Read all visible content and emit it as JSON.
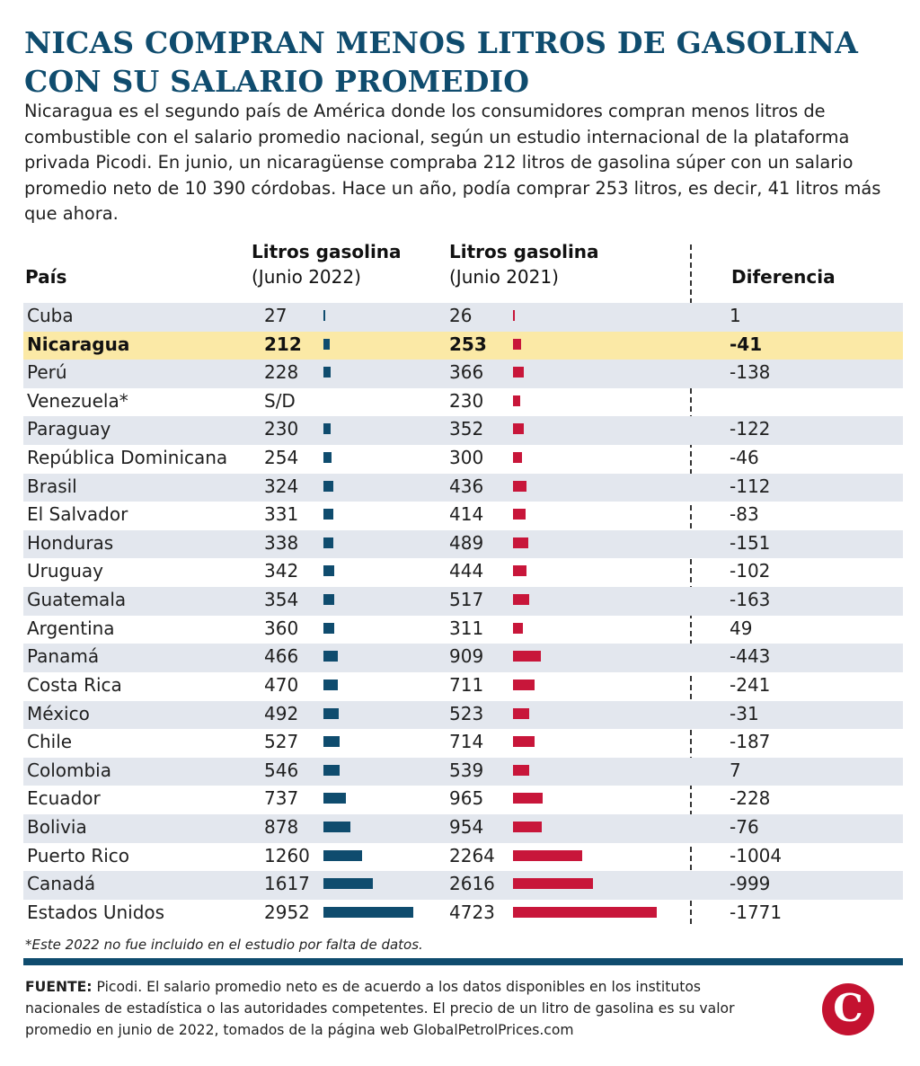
{
  "title": "NICAS COMPRAN MENOS LITROS DE GASOLINA CON SU SALARIO PROMEDIO",
  "intro": "Nicaragua es el segundo país de América donde los consumidores compran menos litros de combustible con el salario promedio nacional, según un estudio internacional de la plataforma privada Picodi. En junio, un nicaragüense compraba 212 litros de gasolina súper con un salario promedio neto de 10 390 córdobas. Hace un año, podía comprar 253 litros, es decir, 41 litros más que ahora.",
  "headers": {
    "country": "País",
    "col2022_line1": "Litros gasolina",
    "col2022_line2": "(Junio 2022)",
    "col2021_line1": "Litros gasolina",
    "col2021_line2": "(Junio 2021)",
    "diff": "Diferencia"
  },
  "note": "*Este 2022 no fue incluido en el estudio por falta de datos.",
  "source_label": "FUENTE:",
  "source_text": " Picodi. El salario promedio neto es de acuerdo a los datos disponibles en los institutos nacionales de estadística o las autoridades competentes. El precio de un litro de gasolina es su valor promedio en junio de 2022, tomados de la página web GlobalPetrolPrices.com",
  "logo_letter": "C",
  "colors": {
    "title": "#0f4c6e",
    "bar_2022": "#0f4c6e",
    "bar_2021": "#c8163a",
    "highlight": "#fbe9a6",
    "row_shade": "#e3e7ee",
    "logo": "#c41230"
  },
  "chart_data": {
    "type": "table",
    "highlight": "Nicaragua",
    "series": [
      {
        "name": "Litros gasolina (Junio 2022)"
      },
      {
        "name": "Litros gasolina (Junio 2021)"
      }
    ],
    "rows": [
      {
        "country": "Cuba",
        "v2022": "27",
        "v2021": "26",
        "diff": "1"
      },
      {
        "country": "Nicaragua",
        "v2022": "212",
        "v2021": "253",
        "diff": "-41"
      },
      {
        "country": "Perú",
        "v2022": "228",
        "v2021": "366",
        "diff": "-138"
      },
      {
        "country": "Venezuela*",
        "v2022": "S/D",
        "v2021": "230",
        "diff": ""
      },
      {
        "country": "Paraguay",
        "v2022": "230",
        "v2021": "352",
        "diff": "-122"
      },
      {
        "country": "República Dominicana",
        "v2022": "254",
        "v2021": "300",
        "diff": "-46"
      },
      {
        "country": "Brasil",
        "v2022": "324",
        "v2021": "436",
        "diff": "-112"
      },
      {
        "country": "El Salvador",
        "v2022": "331",
        "v2021": "414",
        "diff": "-83"
      },
      {
        "country": "Honduras",
        "v2022": "338",
        "v2021": "489",
        "diff": "-151"
      },
      {
        "country": "Uruguay",
        "v2022": "342",
        "v2021": "444",
        "diff": "-102"
      },
      {
        "country": "Guatemala",
        "v2022": "354",
        "v2021": "517",
        "diff": "-163"
      },
      {
        "country": "Argentina",
        "v2022": "360",
        "v2021": "311",
        "diff": "49"
      },
      {
        "country": "Panamá",
        "v2022": "466",
        "v2021": "909",
        "diff": "-443"
      },
      {
        "country": "Costa Rica",
        "v2022": "470",
        "v2021": "711",
        "diff": "-241"
      },
      {
        "country": "México",
        "v2022": "492",
        "v2021": "523",
        "diff": "-31"
      },
      {
        "country": "Chile",
        "v2022": "527",
        "v2021": "714",
        "diff": "-187"
      },
      {
        "country": "Colombia",
        "v2022": "546",
        "v2021": "539",
        "diff": "7"
      },
      {
        "country": "Ecuador",
        "v2022": "737",
        "v2021": "965",
        "diff": "-228"
      },
      {
        "country": "Bolivia",
        "v2022": "878",
        "v2021": "954",
        "diff": "-76"
      },
      {
        "country": "Puerto Rico",
        "v2022": "1260",
        "v2021": "2264",
        "diff": "-1004"
      },
      {
        "country": "Canadá",
        "v2022": "1617",
        "v2021": "2616",
        "diff": "-999"
      },
      {
        "country": "Estados Unidos",
        "v2022": "2952",
        "v2021": "4723",
        "diff": "-1771"
      }
    ]
  }
}
